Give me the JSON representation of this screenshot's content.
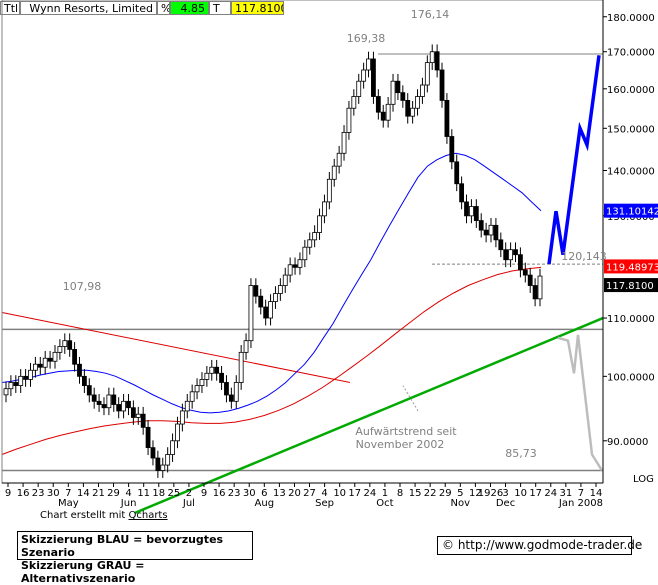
{
  "header": {
    "prefix": "Ttl",
    "name": "Wynn Resorts, Limited",
    "pct_symbol": "%",
    "change": "4.85",
    "t_symbol": "T",
    "price": "117.8100"
  },
  "colors": {
    "price_badge": "#ffff00",
    "change_badge": "#00ff00",
    "up_candle": "#ffffff",
    "down_candle": "#000000",
    "ma_fast": "#0000ff",
    "ma_slow": "#dd0000",
    "trend_up": "#00aa00",
    "trend_down": "#dd0000",
    "scenario_blue": "#0000ff",
    "scenario_grey": "#bdbdbd",
    "badge_blue": "#0000ff",
    "badge_red": "#ff0000",
    "badge_black": "#000000"
  },
  "chart_data": {
    "type": "candlestick",
    "title": "Wynn Resorts, Limited",
    "y_scale": "log",
    "ylim": [
      84,
      185
    ],
    "y_ticks": [
      "180.0000",
      "170.0000",
      "160.0000",
      "150.0000",
      "140.0000",
      "130.0000",
      "110.0000",
      "100.0000",
      "90.0000"
    ],
    "x_ticks": [
      "9",
      "16",
      "23",
      "30",
      "7",
      "14",
      "21",
      "29",
      "4",
      "11",
      "18",
      "25",
      "2",
      "9",
      "16",
      "23",
      "30",
      "6",
      "13",
      "20",
      "27",
      "4",
      "10",
      "17",
      "24",
      "1",
      "8",
      "15",
      "22",
      "29",
      "5",
      "12",
      "1926",
      "3",
      "10",
      "17",
      "24",
      "31",
      "7",
      "14"
    ],
    "month_labels": [
      "May",
      "Jun",
      "Jul",
      "Aug",
      "Sep",
      "Oct",
      "Nov",
      "Dec",
      "Jan 2008"
    ],
    "annotations": [
      "176,14",
      "169,38",
      "107,98",
      "120,143",
      "85,73",
      "Aufwärtstrend seit",
      "November 2002"
    ],
    "price_badges": [
      {
        "label": "131.10142",
        "color": "blue"
      },
      {
        "label": "119.48973",
        "color": "red"
      },
      {
        "label": "117.8100",
        "color": "black"
      }
    ],
    "closes": [
      98.0,
      99.0,
      98.5,
      100.0,
      99.5,
      101.0,
      102.0,
      101.5,
      103.0,
      102.5,
      104.0,
      105.0,
      106.0,
      104.5,
      102.0,
      100.0,
      98.5,
      97.0,
      96.0,
      95.5,
      95.0,
      97.0,
      95.5,
      94.5,
      96.0,
      95.0,
      93.5,
      94.0,
      92.0,
      89.0,
      87.5,
      85.73,
      86.5,
      88.0,
      90.0,
      92.5,
      94.5,
      96.0,
      97.5,
      98.5,
      99.5,
      100.5,
      101.5,
      100.5,
      99.0,
      97.0,
      96.0,
      99.0,
      104.0,
      106.0,
      116.0,
      114.0,
      112.0,
      110.0,
      113.0,
      114.5,
      116.0,
      118.0,
      120.0,
      119.5,
      121.0,
      123.5,
      125.0,
      126.5,
      130.0,
      133.0,
      138.0,
      141.0,
      144.0,
      149.0,
      155.0,
      158.0,
      162.0,
      165.0,
      168.0,
      158.0,
      154.0,
      152.0,
      156.0,
      162.0,
      159.0,
      157.0,
      153.0,
      155.0,
      158.0,
      161.0,
      167.0,
      170.0,
      165.0,
      157.0,
      148.0,
      142.0,
      137.0,
      133.0,
      130.0,
      132.0,
      129.0,
      127.0,
      126.0,
      128.0,
      125.0,
      123.0,
      121.0,
      123.0,
      122.0,
      119.0,
      118.0,
      116.0,
      113.5,
      117.81
    ],
    "ma_fast": [
      99.0,
      99.2,
      99.5,
      99.8,
      100.2,
      100.5,
      100.8,
      100.9,
      101.0,
      101.0,
      100.8,
      100.5,
      100.0,
      99.3,
      98.6,
      97.8,
      97.0,
      96.3,
      95.6,
      95.0,
      94.6,
      94.3,
      94.2,
      94.3,
      94.5,
      94.9,
      95.4,
      96.0,
      96.8,
      97.8,
      99.0,
      100.5,
      102.0,
      104.0,
      106.5,
      109.0,
      112.0,
      115.0,
      118.0,
      121.0,
      124.5,
      128.0,
      131.5,
      135.0,
      138.5,
      141.0,
      142.5,
      143.5,
      144.0,
      143.5,
      142.5,
      141.0,
      139.5,
      138.0,
      136.5,
      135.0,
      133.0,
      131.1
    ],
    "ma_slow": [
      88.0,
      88.8,
      89.5,
      90.2,
      90.8,
      91.3,
      91.8,
      92.2,
      92.5,
      92.8,
      93.0,
      93.0,
      92.9,
      92.7,
      92.6,
      92.6,
      92.8,
      93.2,
      93.8,
      94.6,
      95.6,
      96.8,
      98.2,
      99.8,
      101.5,
      103.3,
      105.2,
      107.2,
      109.2,
      111.2,
      113.0,
      114.6,
      116.0,
      117.1,
      118.1,
      118.8,
      119.2,
      119.49
    ],
    "trend_up_line": {
      "from": 80.0,
      "to": 110.0,
      "label": "Aufwärtstrend seit November 2002"
    },
    "trend_down_line": {
      "from": 111.0,
      "to": 99.0
    },
    "horizontal_levels": [
      107.98,
      169.38,
      120.143,
      85.73
    ],
    "scenario_blue": [
      120.143,
      131.0,
      122.0,
      150.0,
      146.0,
      169.0
    ],
    "scenario_grey": [
      106.5,
      106.0,
      100.5,
      107.0,
      88.0,
      85.73
    ]
  },
  "footer": {
    "credit_prefix": "Chart erstellt mit ",
    "credit_link": "Qcharts",
    "note_blue": "Skizzierung BLAU = bevorzugtes Szenario",
    "note_grey": "Skizzierung GRAU = Alternativszenario",
    "copyright": "© http://www.godmode-trader.de",
    "log_label": "LOG"
  }
}
